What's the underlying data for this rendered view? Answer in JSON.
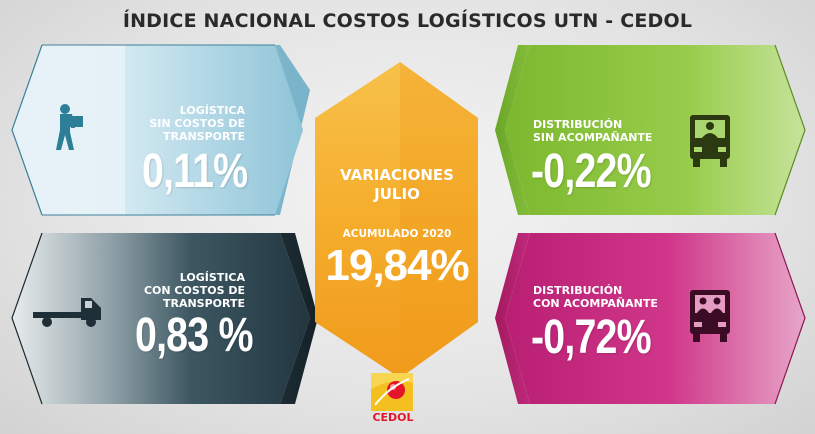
{
  "header": {
    "title": "ÍNDICE NACIONAL COSTOS LOGÍSTICOS UTN - CEDOL"
  },
  "panels": {
    "logistica_sin": {
      "label_line1": "LOGÍSTICA",
      "label_line2": "SIN COSTOS DE",
      "label_line3": "TRANSPORTE",
      "value": "0,11%",
      "icon": "delivery-person-icon",
      "color": "#a9d3e2"
    },
    "logistica_con": {
      "label_line1": "LOGÍSTICA",
      "label_line2": "CON COSTOS DE",
      "label_line3": "TRANSPORTE",
      "value": "0,83 %",
      "icon": "truck-icon",
      "color": "#2f4a55"
    },
    "distribucion_sin": {
      "label_line1": "DISTRIBUCIÓN",
      "label_line2": "SIN ACOMPAÑANTE",
      "value": "-0,22%",
      "icon": "truck-driver-icon",
      "color": "#8cc63f"
    },
    "distribucion_con": {
      "label_line1": "DISTRIBUCIÓN",
      "label_line2": "CON ACOMPAÑANTE",
      "value": "-0,72%",
      "icon": "truck-two-people-icon",
      "color": "#c8277e"
    }
  },
  "center": {
    "title_line1": "VARIACIONES",
    "title_line2": "JULIO",
    "sub_label": "ACUMULADO 2020",
    "value": "19,84%",
    "color": "#f5a623"
  },
  "logo": {
    "text": "CEDOL",
    "color": "#e4142b"
  }
}
